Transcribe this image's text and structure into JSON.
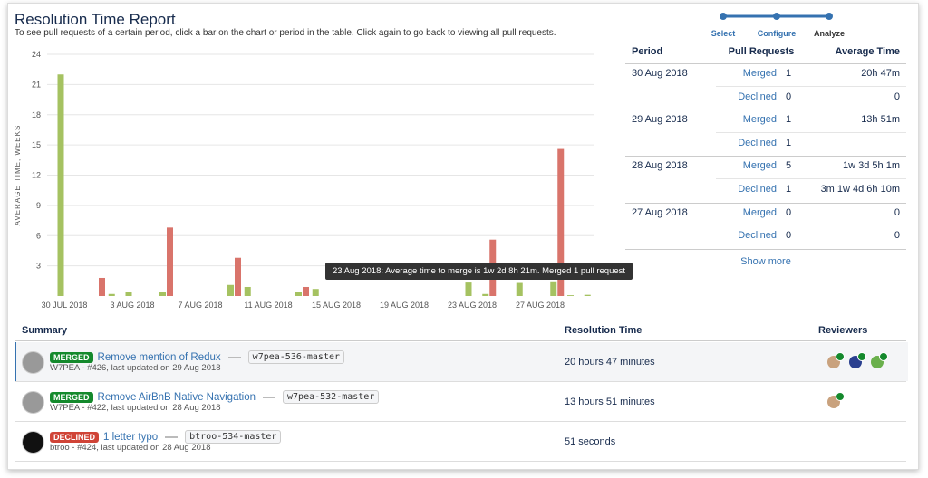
{
  "header": {
    "title": "Resolution Time Report",
    "subtitle": "To see pull requests of a certain period, click a bar on the chart or period in the table. Click again to go back to viewing all pull requests."
  },
  "steps": [
    "Select",
    "Configure",
    "Analyze"
  ],
  "chart_data": {
    "type": "bar",
    "y_label": "AVERAGE TIME, WEEKS",
    "categories": [
      "30 JUL 2018",
      null,
      null,
      null,
      "3 AUG 2018",
      null,
      null,
      null,
      "7 AUG 2018",
      null,
      null,
      null,
      "11 AUG 2018",
      null,
      null,
      null,
      "15 AUG 2018",
      null,
      null,
      null,
      "19 AUG 2018",
      null,
      null,
      null,
      "23 AUG 2018",
      null,
      null,
      null,
      "27 AUG 2018",
      null,
      null,
      null
    ],
    "series": [
      {
        "color": "#a5c261",
        "values": [
          22,
          null,
          null,
          0.2,
          0.4,
          null,
          0.4,
          null,
          null,
          null,
          1.1,
          0.9,
          null,
          null,
          0.4,
          0.7,
          null,
          null,
          null,
          null,
          null,
          null,
          null,
          null,
          1.34,
          0.2,
          null,
          1.3,
          null,
          1.46,
          0.08,
          0.12
        ]
      },
      {
        "color": "#d9746b",
        "values": [
          null,
          null,
          1.8,
          null,
          null,
          null,
          6.8,
          null,
          null,
          null,
          3.8,
          null,
          null,
          null,
          0.9,
          null,
          null,
          null,
          null,
          null,
          null,
          null,
          null,
          null,
          null,
          5.6,
          null,
          null,
          null,
          14.6,
          null,
          null
        ]
      }
    ],
    "ylim": [
      0,
      24
    ],
    "yticks": [
      3,
      6,
      9,
      12,
      15,
      18,
      21,
      24
    ],
    "grid": true,
    "tooltip": "23 Aug 2018: Average time to merge is 1w 2d 8h 21m. Merged 1 pull request"
  },
  "period_table": {
    "headers": [
      "Period",
      "Pull Requests",
      "Average Time"
    ],
    "groups": [
      {
        "period": "30 Aug 2018",
        "rows": [
          {
            "status": "Merged",
            "count": "1",
            "time": "20h 47m"
          },
          {
            "status": "Declined",
            "count": "0",
            "time": "0"
          }
        ]
      },
      {
        "period": "29 Aug 2018",
        "rows": [
          {
            "status": "Merged",
            "count": "1",
            "time": "13h 51m"
          },
          {
            "status": "Declined",
            "count": "1"
          }
        ]
      },
      {
        "period": "28 Aug 2018",
        "rows": [
          {
            "status": "Merged",
            "count": "5",
            "time": "1w 3d 5h 1m"
          },
          {
            "status": "Declined",
            "count": "1",
            "time": "3m 1w 4d 6h 10m"
          }
        ]
      },
      {
        "period": "27 Aug 2018",
        "rows": [
          {
            "status": "Merged",
            "count": "0",
            "time": "0"
          },
          {
            "status": "Declined",
            "count": "0",
            "time": "0"
          }
        ]
      }
    ],
    "show_more": "Show more"
  },
  "summary_table": {
    "headers": [
      "Summary",
      "Resolution Time",
      "Reviewers"
    ],
    "rows": [
      {
        "badge": "MERGED",
        "title": "Remove mention of Redux",
        "branch": "w7pea-536-master",
        "meta": "W7PEA - #426, last updated on 29 Aug 2018",
        "time": "20 hours 47 minutes"
      },
      {
        "badge": "MERGED",
        "title": "Remove AirBnB Native Navigation",
        "branch": "w7pea-532-master",
        "meta": "W7PEA - #422, last updated on 28 Aug 2018",
        "time": "13 hours 51 minutes"
      },
      {
        "badge": "DECLINED",
        "title": "1 letter typo",
        "branch": "btroo-534-master",
        "meta": "btroo - #424, last updated on 28 Aug 2018",
        "time": "51 seconds"
      }
    ]
  }
}
